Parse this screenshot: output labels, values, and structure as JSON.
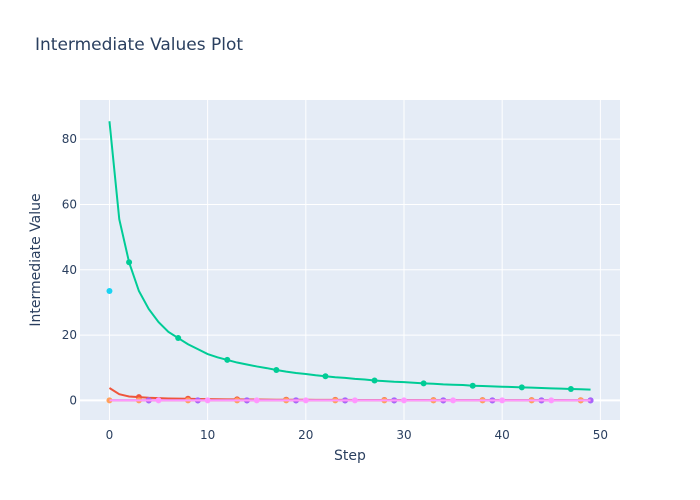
{
  "chart_data": {
    "type": "line",
    "title": "Intermediate Values Plot",
    "xlabel": "Step",
    "ylabel": "Intermediate Value",
    "xlim": [
      -3,
      52
    ],
    "ylim": [
      -6,
      92
    ],
    "x_ticks": [
      0,
      10,
      20,
      30,
      40,
      50
    ],
    "y_ticks": [
      0,
      20,
      40,
      60,
      80
    ],
    "grid": true,
    "legend": "none",
    "plot_background": "#e5ecf6",
    "series": [
      {
        "color": "#00cc96",
        "x": [
          0,
          1,
          2,
          3,
          4,
          5,
          6,
          7,
          8,
          9,
          10,
          11,
          12,
          13,
          14,
          15,
          16,
          17,
          18,
          19,
          20,
          21,
          22,
          23,
          24,
          25,
          26,
          27,
          28,
          29,
          30,
          31,
          32,
          33,
          34,
          35,
          36,
          37,
          38,
          39,
          40,
          41,
          42,
          43,
          44,
          45,
          46,
          47,
          48,
          49
        ],
        "values": [
          85.5,
          55.5,
          42.3,
          33.5,
          28.0,
          24.0,
          21.0,
          19.1,
          17.2,
          15.7,
          14.2,
          13.2,
          12.4,
          11.6,
          11.0,
          10.4,
          9.9,
          9.3,
          8.8,
          8.4,
          8.1,
          7.7,
          7.4,
          7.1,
          6.9,
          6.6,
          6.4,
          6.1,
          5.9,
          5.7,
          5.6,
          5.4,
          5.2,
          5.1,
          4.9,
          4.8,
          4.7,
          4.5,
          4.4,
          4.3,
          4.2,
          4.1,
          4.0,
          3.9,
          3.8,
          3.7,
          3.6,
          3.5,
          3.4,
          3.3
        ],
        "marker_x": [
          2,
          7,
          12,
          17,
          22,
          27,
          32,
          37,
          42,
          47
        ]
      },
      {
        "color": "#ef553b",
        "x": [
          0,
          1,
          2,
          3,
          4,
          5,
          6,
          7,
          8,
          9,
          10,
          11,
          12,
          13,
          14,
          15,
          16,
          17,
          18,
          19,
          20,
          21,
          22,
          23,
          24,
          25,
          26,
          27,
          28,
          29,
          30,
          31,
          32,
          33,
          34,
          35,
          36,
          37,
          38,
          39,
          40,
          41,
          42,
          43,
          44,
          45,
          46,
          47,
          48,
          49
        ],
        "values": [
          3.8,
          1.9,
          1.2,
          1.0,
          0.8,
          0.7,
          0.6,
          0.55,
          0.5,
          0.45,
          0.4,
          0.35,
          0.33,
          0.3,
          0.28,
          0.26,
          0.24,
          0.22,
          0.21,
          0.2,
          0.19,
          0.18,
          0.17,
          0.16,
          0.15,
          0.14,
          0.14,
          0.13,
          0.13,
          0.12,
          0.12,
          0.11,
          0.11,
          0.1,
          0.1,
          0.1,
          0.09,
          0.09,
          0.09,
          0.08,
          0.08,
          0.08,
          0.08,
          0.07,
          0.07,
          0.07,
          0.07,
          0.06,
          0.06,
          0.06
        ],
        "marker_x": [
          3,
          8,
          13,
          18,
          23,
          28,
          33,
          38,
          43,
          48
        ]
      },
      {
        "color": "#636efa",
        "x": [
          0,
          49
        ],
        "values": [
          0,
          0
        ],
        "marker_x": [
          4,
          9,
          14,
          19,
          24,
          29,
          34,
          39,
          44,
          49
        ]
      },
      {
        "color": "#ab63fa",
        "x": [
          0,
          49
        ],
        "values": [
          0,
          0
        ],
        "marker_x": [
          4,
          9,
          14,
          19,
          24,
          29,
          34,
          39,
          44,
          49
        ]
      },
      {
        "color": "#ffa15a",
        "x": [
          0,
          49
        ],
        "values": [
          0,
          0
        ],
        "marker_x": [
          0,
          3,
          8,
          13,
          18,
          23,
          28,
          33,
          38,
          43,
          48
        ]
      },
      {
        "color": "#ff97ff",
        "x": [
          0,
          49
        ],
        "values": [
          0,
          0
        ],
        "marker_x": [
          5,
          10,
          15,
          20,
          25,
          30,
          35,
          40,
          45
        ]
      },
      {
        "color": "#19d3f3",
        "x": [
          0
        ],
        "values": [
          33.5
        ],
        "marker_x": [
          0
        ]
      }
    ]
  }
}
